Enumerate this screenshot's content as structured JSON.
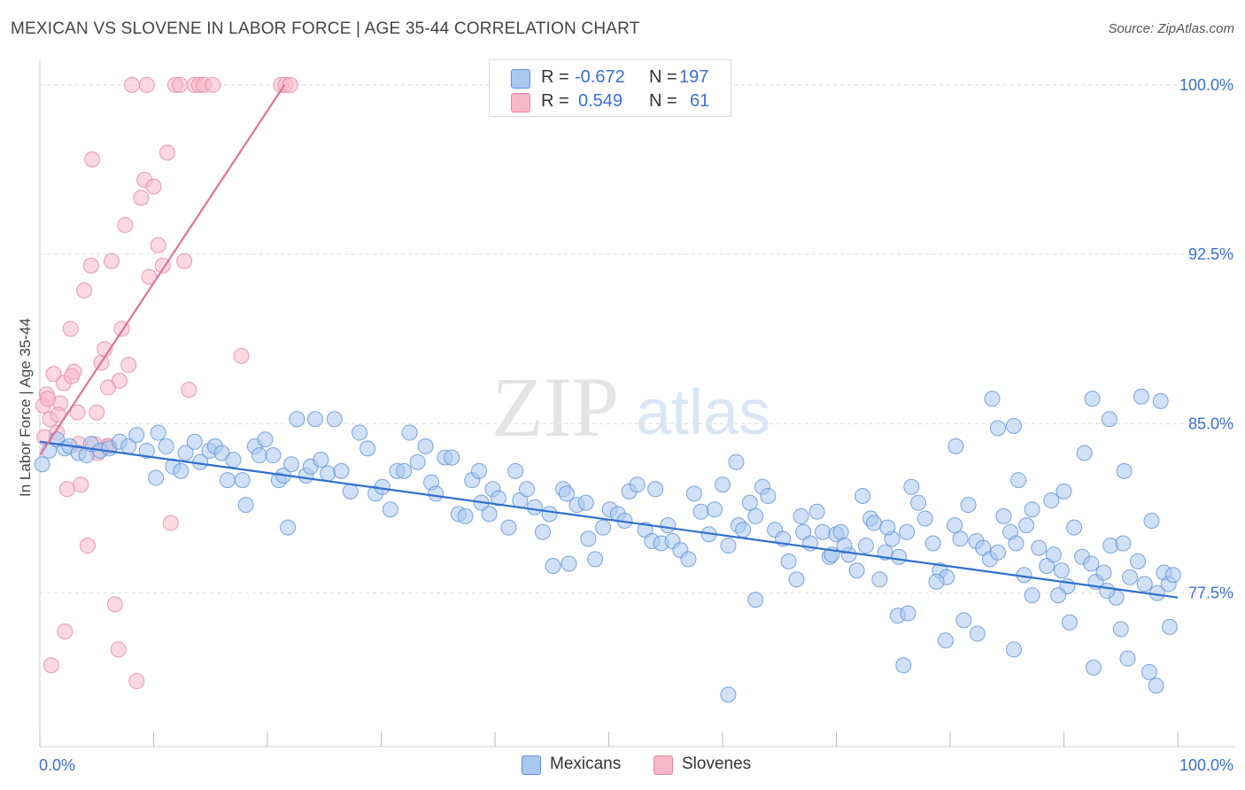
{
  "title": "MEXICAN VS SLOVENE IN LABOR FORCE | AGE 35-44 CORRELATION CHART",
  "source": "Source: ZipAtlas.com",
  "watermark": {
    "zip": "ZIP",
    "atlas": "atlas"
  },
  "legend": {
    "rows": [
      {
        "r_label": "R =",
        "r_value": "-0.672",
        "n_label": "N =",
        "n_value": "197",
        "color": "#a9c8f0"
      },
      {
        "r_label": "R =",
        "r_value": "0.549",
        "n_label": "N =",
        "n_value": "61",
        "color": "#f7b8ca"
      }
    ]
  },
  "bottom_legend": [
    {
      "label": "Mexicans",
      "color": "#a9c8f0"
    },
    {
      "label": "Slovenes",
      "color": "#f7b8ca"
    }
  ],
  "colors": {
    "blue_fill": "#a9c8f0",
    "blue_stroke": "#5b8fd8",
    "blue_line": "#2f6fd0",
    "pink_fill": "#f7b8ca",
    "pink_stroke": "#e6859f",
    "pink_line": "#e0729a",
    "axis_text": "#3b6fd4",
    "grid": "#dddddd"
  },
  "chart_data": {
    "type": "scatter",
    "title": "MEXICAN VS SLOVENE IN LABOR FORCE | AGE 35-44 CORRELATION CHART",
    "xlabel": "",
    "ylabel": "In Labor Force | Age 35-44",
    "xlim": [
      0,
      100
    ],
    "ylim": [
      70.7,
      100.7
    ],
    "x_tick_labels": [
      "0.0%",
      "100.0%"
    ],
    "y_ticks": [
      77.5,
      85.0,
      92.5,
      100.0
    ],
    "y_tick_labels": [
      "77.5%",
      "85.0%",
      "92.5%",
      "100.0%"
    ],
    "grid": true,
    "series": [
      {
        "name": "Mexicans",
        "r": -0.672,
        "n": 197,
        "trend": [
          [
            0,
            84.2
          ],
          [
            100,
            77.3
          ]
        ],
        "points": [
          [
            0.2,
            83.2
          ],
          [
            0.8,
            83.8
          ],
          [
            1.5,
            84.3
          ],
          [
            2.2,
            83.9
          ],
          [
            2.6,
            84.0
          ],
          [
            3.4,
            83.7
          ],
          [
            4.1,
            83.6
          ],
          [
            4.5,
            84.1
          ],
          [
            5.3,
            83.8
          ],
          [
            6.1,
            83.9
          ],
          [
            7.0,
            84.2
          ],
          [
            7.8,
            84.0
          ],
          [
            8.5,
            84.5
          ],
          [
            9.4,
            83.8
          ],
          [
            10.2,
            82.6
          ],
          [
            10.4,
            84.6
          ],
          [
            11.1,
            84.0
          ],
          [
            11.7,
            83.1
          ],
          [
            12.4,
            82.9
          ],
          [
            12.8,
            83.7
          ],
          [
            13.6,
            84.2
          ],
          [
            14.1,
            83.3
          ],
          [
            14.9,
            83.8
          ],
          [
            15.4,
            84.0
          ],
          [
            16.0,
            83.7
          ],
          [
            16.5,
            82.5
          ],
          [
            17.0,
            83.4
          ],
          [
            17.8,
            82.5
          ],
          [
            18.1,
            81.4
          ],
          [
            18.9,
            84.0
          ],
          [
            19.3,
            83.6
          ],
          [
            19.8,
            84.3
          ],
          [
            20.5,
            83.6
          ],
          [
            21.0,
            82.5
          ],
          [
            21.4,
            82.7
          ],
          [
            21.8,
            80.4
          ],
          [
            22.1,
            83.2
          ],
          [
            22.6,
            85.2
          ],
          [
            23.4,
            82.7
          ],
          [
            23.8,
            83.1
          ],
          [
            24.2,
            85.2
          ],
          [
            24.7,
            83.4
          ],
          [
            25.3,
            82.8
          ],
          [
            25.9,
            85.2
          ],
          [
            26.5,
            82.9
          ],
          [
            27.3,
            82.0
          ],
          [
            28.1,
            84.6
          ],
          [
            28.8,
            83.9
          ],
          [
            29.5,
            81.9
          ],
          [
            30.1,
            82.2
          ],
          [
            30.8,
            81.2
          ],
          [
            31.4,
            82.9
          ],
          [
            32.0,
            82.9
          ],
          [
            32.5,
            84.6
          ],
          [
            33.2,
            83.3
          ],
          [
            33.9,
            84.0
          ],
          [
            34.4,
            82.4
          ],
          [
            34.8,
            81.9
          ],
          [
            35.6,
            83.5
          ],
          [
            36.2,
            83.5
          ],
          [
            36.8,
            81.0
          ],
          [
            37.4,
            80.9
          ],
          [
            38.0,
            82.5
          ],
          [
            38.6,
            82.9
          ],
          [
            38.8,
            81.5
          ],
          [
            39.5,
            81.0
          ],
          [
            39.8,
            82.1
          ],
          [
            40.3,
            81.7
          ],
          [
            41.2,
            80.4
          ],
          [
            41.8,
            82.9
          ],
          [
            42.2,
            81.6
          ],
          [
            42.8,
            82.1
          ],
          [
            43.5,
            81.3
          ],
          [
            44.2,
            80.2
          ],
          [
            44.8,
            81.0
          ],
          [
            45.1,
            78.7
          ],
          [
            46.0,
            82.1
          ],
          [
            46.3,
            81.9
          ],
          [
            46.5,
            78.8
          ],
          [
            47.2,
            81.4
          ],
          [
            48.0,
            81.5
          ],
          [
            48.2,
            79.9
          ],
          [
            48.8,
            79.0
          ],
          [
            49.5,
            80.4
          ],
          [
            50.1,
            81.2
          ],
          [
            50.8,
            81.0
          ],
          [
            51.4,
            80.7
          ],
          [
            51.8,
            82.0
          ],
          [
            52.5,
            82.3
          ],
          [
            53.2,
            80.3
          ],
          [
            53.8,
            79.8
          ],
          [
            54.1,
            82.1
          ],
          [
            54.6,
            79.7
          ],
          [
            55.2,
            80.5
          ],
          [
            55.6,
            79.8
          ],
          [
            56.3,
            79.4
          ],
          [
            57.0,
            79.0
          ],
          [
            57.5,
            81.9
          ],
          [
            58.1,
            81.1
          ],
          [
            58.8,
            80.1
          ],
          [
            59.3,
            81.2
          ],
          [
            60.0,
            82.3
          ],
          [
            60.5,
            79.6
          ],
          [
            61.2,
            83.3
          ],
          [
            61.4,
            80.5
          ],
          [
            61.8,
            80.3
          ],
          [
            62.4,
            81.5
          ],
          [
            62.9,
            80.9
          ],
          [
            63.5,
            82.2
          ],
          [
            64.0,
            81.8
          ],
          [
            64.6,
            80.3
          ],
          [
            65.3,
            79.9
          ],
          [
            65.8,
            78.9
          ],
          [
            66.5,
            78.1
          ],
          [
            67.1,
            80.2
          ],
          [
            67.7,
            79.7
          ],
          [
            68.3,
            81.1
          ],
          [
            68.8,
            80.2
          ],
          [
            69.4,
            79.1
          ],
          [
            70.0,
            80.1
          ],
          [
            70.4,
            80.2
          ],
          [
            71.1,
            79.2
          ],
          [
            71.8,
            78.5
          ],
          [
            72.6,
            79.6
          ],
          [
            73.0,
            80.8
          ],
          [
            73.8,
            78.1
          ],
          [
            74.3,
            79.3
          ],
          [
            74.9,
            79.9
          ],
          [
            75.5,
            79.1
          ],
          [
            76.2,
            80.2
          ],
          [
            76.6,
            82.2
          ],
          [
            77.2,
            81.5
          ],
          [
            77.8,
            80.8
          ],
          [
            78.5,
            79.7
          ],
          [
            79.1,
            78.5
          ],
          [
            79.7,
            78.2
          ],
          [
            80.4,
            80.5
          ],
          [
            80.9,
            79.9
          ],
          [
            81.6,
            81.4
          ],
          [
            82.3,
            79.8
          ],
          [
            82.9,
            79.5
          ],
          [
            83.5,
            79.0
          ],
          [
            84.2,
            79.3
          ],
          [
            84.7,
            80.9
          ],
          [
            85.3,
            80.2
          ],
          [
            85.8,
            79.7
          ],
          [
            86.5,
            78.3
          ],
          [
            87.2,
            81.2
          ],
          [
            87.8,
            79.5
          ],
          [
            88.5,
            78.7
          ],
          [
            89.1,
            79.2
          ],
          [
            89.8,
            78.5
          ],
          [
            90.3,
            77.8
          ],
          [
            90.9,
            80.4
          ],
          [
            91.6,
            79.1
          ],
          [
            92.4,
            78.8
          ],
          [
            92.8,
            78.0
          ],
          [
            93.5,
            78.4
          ],
          [
            94.1,
            79.6
          ],
          [
            94.6,
            77.3
          ],
          [
            95.2,
            79.7
          ],
          [
            95.8,
            78.2
          ],
          [
            96.5,
            78.9
          ],
          [
            97.1,
            77.9
          ],
          [
            97.7,
            80.7
          ],
          [
            98.2,
            77.5
          ],
          [
            98.8,
            78.4
          ],
          [
            99.2,
            77.9
          ],
          [
            99.6,
            78.3
          ],
          [
            60.5,
            73.0
          ],
          [
            62.9,
            77.2
          ],
          [
            66.9,
            80.9
          ],
          [
            69.6,
            79.2
          ],
          [
            73.3,
            80.6
          ],
          [
            75.4,
            76.5
          ],
          [
            75.9,
            74.3
          ],
          [
            76.3,
            76.6
          ],
          [
            79.6,
            75.4
          ],
          [
            78.8,
            78.0
          ],
          [
            82.4,
            75.7
          ],
          [
            85.6,
            75.0
          ],
          [
            87.2,
            77.4
          ],
          [
            89.5,
            77.4
          ],
          [
            90.5,
            76.2
          ],
          [
            92.6,
            74.2
          ],
          [
            93.8,
            77.6
          ],
          [
            95.0,
            75.9
          ],
          [
            95.6,
            74.6
          ],
          [
            97.5,
            74.0
          ],
          [
            98.1,
            73.4
          ],
          [
            80.5,
            84.0
          ],
          [
            83.7,
            86.1
          ],
          [
            85.6,
            84.9
          ],
          [
            86.0,
            82.5
          ],
          [
            96.8,
            86.2
          ],
          [
            98.5,
            86.0
          ],
          [
            92.5,
            86.1
          ],
          [
            94.0,
            85.2
          ],
          [
            84.2,
            84.8
          ],
          [
            95.3,
            82.9
          ],
          [
            91.8,
            83.7
          ],
          [
            90.0,
            82.0
          ],
          [
            88.9,
            81.6
          ],
          [
            86.7,
            80.5
          ],
          [
            70.7,
            79.6
          ],
          [
            72.3,
            81.8
          ],
          [
            74.5,
            80.4
          ],
          [
            99.3,
            76.0
          ],
          [
            81.2,
            76.3
          ]
        ]
      },
      {
        "name": "Slovenes",
        "r": 0.549,
        "n": 61,
        "trend": [
          [
            0,
            83.6
          ],
          [
            21.5,
            100.0
          ]
        ],
        "points": [
          [
            0.3,
            85.8
          ],
          [
            0.6,
            86.3
          ],
          [
            0.9,
            85.2
          ],
          [
            1.2,
            87.2
          ],
          [
            1.5,
            84.6
          ],
          [
            1.8,
            85.9
          ],
          [
            2.1,
            86.8
          ],
          [
            2.4,
            82.1
          ],
          [
            2.7,
            89.2
          ],
          [
            3.0,
            87.3
          ],
          [
            3.3,
            85.5
          ],
          [
            3.6,
            82.3
          ],
          [
            3.9,
            90.9
          ],
          [
            4.2,
            79.6
          ],
          [
            4.5,
            92.0
          ],
          [
            4.8,
            84.1
          ],
          [
            5.1,
            83.7
          ],
          [
            5.4,
            87.7
          ],
          [
            5.7,
            88.3
          ],
          [
            6.0,
            86.6
          ],
          [
            6.3,
            92.2
          ],
          [
            6.6,
            77.0
          ],
          [
            6.9,
            75.0
          ],
          [
            7.2,
            89.2
          ],
          [
            7.5,
            93.8
          ],
          [
            7.8,
            87.6
          ],
          [
            8.1,
            100.0
          ],
          [
            8.5,
            73.6
          ],
          [
            8.9,
            95.0
          ],
          [
            9.2,
            95.8
          ],
          [
            9.6,
            91.5
          ],
          [
            10.0,
            95.5
          ],
          [
            10.4,
            92.9
          ],
          [
            10.8,
            92.0
          ],
          [
            11.2,
            97.0
          ],
          [
            11.5,
            80.6
          ],
          [
            11.9,
            100.0
          ],
          [
            12.3,
            100.0
          ],
          [
            12.7,
            92.2
          ],
          [
            13.1,
            86.5
          ],
          [
            13.6,
            100.0
          ],
          [
            14.0,
            100.0
          ],
          [
            14.4,
            100.0
          ],
          [
            17.7,
            88.0
          ],
          [
            21.2,
            100.0
          ],
          [
            21.6,
            100.0
          ],
          [
            22.0,
            100.0
          ],
          [
            1.0,
            74.3
          ],
          [
            2.2,
            75.8
          ],
          [
            4.6,
            96.7
          ],
          [
            5.9,
            84.0
          ],
          [
            7.0,
            86.9
          ],
          [
            0.4,
            84.4
          ],
          [
            1.6,
            85.4
          ],
          [
            3.4,
            84.1
          ],
          [
            6.1,
            84.0
          ],
          [
            0.7,
            86.1
          ],
          [
            2.8,
            87.1
          ],
          [
            9.4,
            100.0
          ],
          [
            15.2,
            100.0
          ],
          [
            5.0,
            85.5
          ]
        ]
      }
    ]
  }
}
